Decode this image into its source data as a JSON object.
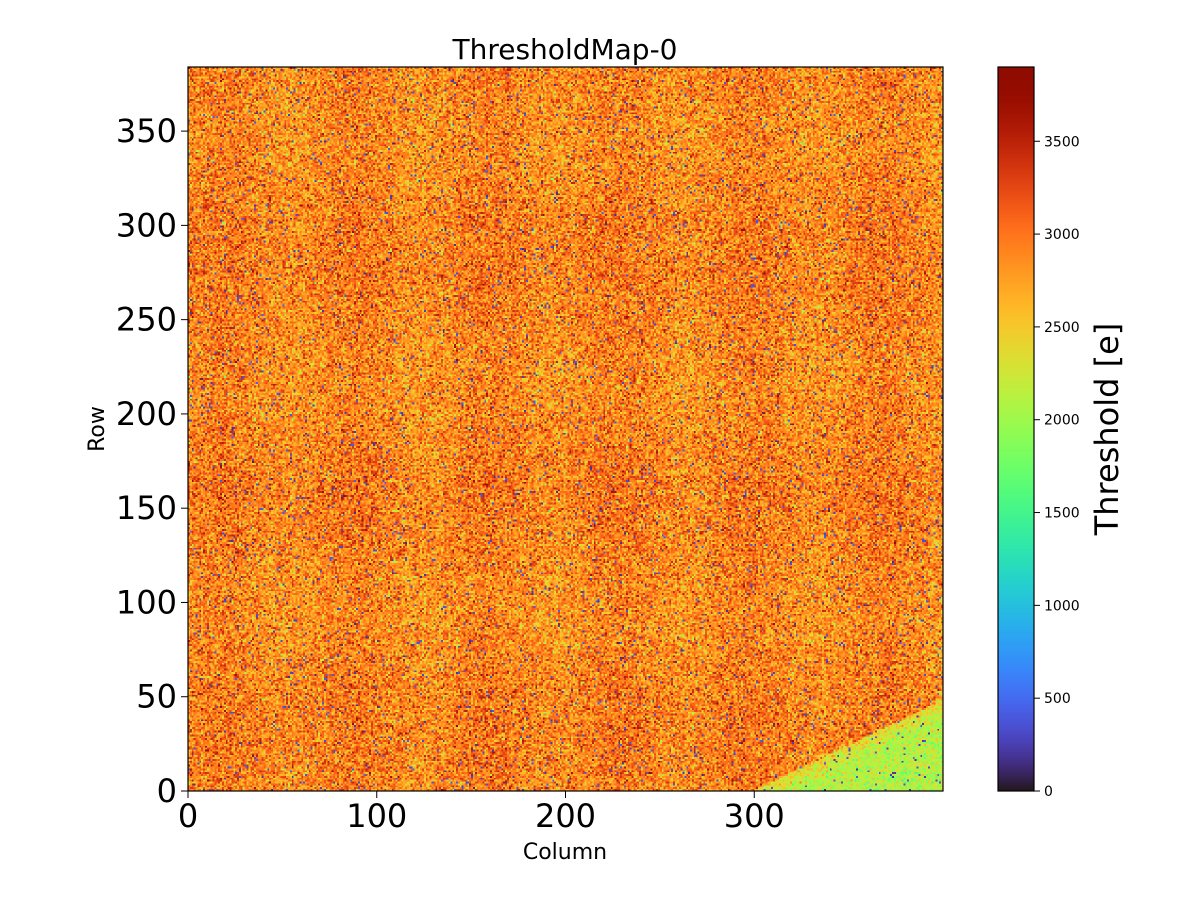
{
  "chart_data": {
    "type": "heatmap",
    "title": "ThresholdMap-0",
    "xlabel": "Column",
    "ylabel": "Row",
    "colorbar_label": "Threshold [e]",
    "colormap": "turbo",
    "xlim": [
      0,
      400
    ],
    "ylim": [
      0,
      384
    ],
    "n_columns": 400,
    "n_rows": 384,
    "xticks": [
      0,
      100,
      200,
      300
    ],
    "yticks": [
      0,
      50,
      100,
      150,
      200,
      250,
      300,
      350
    ],
    "colorbar_range": [
      0,
      3900
    ],
    "colorbar_ticks": [
      0,
      500,
      1000,
      1500,
      2000,
      2500,
      3000,
      3500
    ],
    "typical_threshold": 2900,
    "typical_spread": 300,
    "low_region": {
      "location": "bottom-right",
      "columns": [
        300,
        400
      ],
      "rows": [
        0,
        45
      ],
      "typical_threshold": 2100
    },
    "grid": false
  }
}
